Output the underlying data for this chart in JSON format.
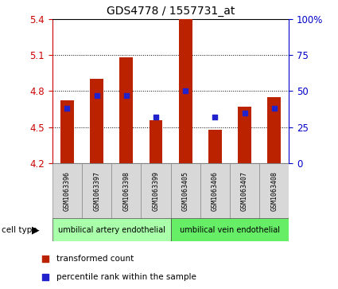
{
  "title": "GDS4778 / 1557731_at",
  "samples": [
    "GSM1063396",
    "GSM1063397",
    "GSM1063398",
    "GSM1063399",
    "GSM1063405",
    "GSM1063406",
    "GSM1063407",
    "GSM1063408"
  ],
  "bar_values": [
    4.72,
    4.9,
    5.08,
    4.56,
    5.4,
    4.48,
    4.67,
    4.75
  ],
  "percentile_values": [
    38,
    47,
    47,
    32,
    50,
    32,
    35,
    38
  ],
  "bar_bottom": 4.2,
  "ylim_left": [
    4.2,
    5.4
  ],
  "ylim_right": [
    0,
    100
  ],
  "yticks_left": [
    4.2,
    4.5,
    4.8,
    5.1,
    5.4
  ],
  "yticks_right": [
    0,
    25,
    50,
    75,
    100
  ],
  "bar_color": "#bb2200",
  "dot_color": "#2222cc",
  "cell_type_groups": [
    {
      "label": "umbilical artery endothelial",
      "samples": 4,
      "color": "#aaffaa"
    },
    {
      "label": "umbilical vein endothelial",
      "samples": 4,
      "color": "#66ee66"
    }
  ],
  "legend_items": [
    {
      "label": "transformed count",
      "color": "#bb2200"
    },
    {
      "label": "percentile rank within the sample",
      "color": "#2222cc"
    }
  ],
  "cell_type_label": "cell type",
  "tick_label_color_left": "#cc0000",
  "tick_label_color_right": "#0000cc",
  "background_color": "#ffffff",
  "bar_width": 0.45
}
